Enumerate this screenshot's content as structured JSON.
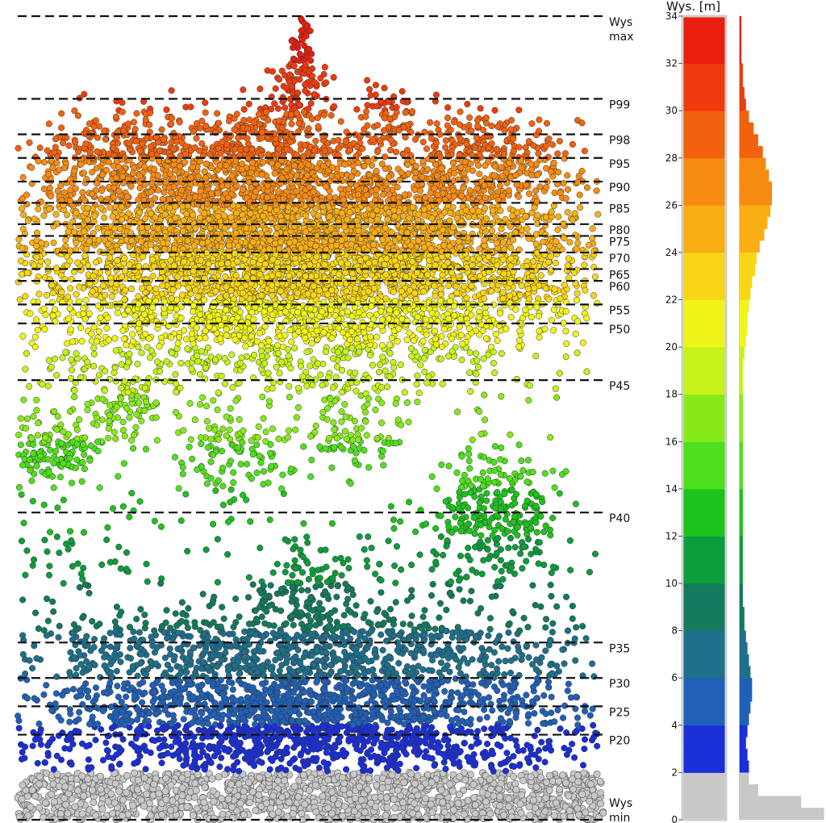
{
  "chart_data": {
    "type": "scatter",
    "title": "",
    "xlabel": "",
    "ylabel": "Wys. [m]",
    "ylim": [
      0,
      34
    ],
    "yticks": [
      0,
      2,
      4,
      6,
      8,
      10,
      12,
      14,
      16,
      18,
      20,
      22,
      24,
      26,
      28,
      30,
      32,
      34
    ],
    "ground_threshold_m": 2,
    "ground_color": "#c8c8c8",
    "colormap": [
      "#1a2fd8",
      "#2060b8",
      "#1e6f8c",
      "#137a5e",
      "#0d9c3c",
      "#1ec21e",
      "#4ee01c",
      "#86ea1a",
      "#c4f21a",
      "#f0f418",
      "#f9d615",
      "#f9ae14",
      "#f78b12",
      "#f2620e",
      "#ee3a0d",
      "#e81e0e"
    ],
    "percentile_lines": [
      {
        "label": "Wys max",
        "label_line1": "Wys",
        "label_line2": "max",
        "value": 34.0
      },
      {
        "label": "P99",
        "value": 30.5
      },
      {
        "label": "P98",
        "value": 29.0
      },
      {
        "label": "P95",
        "value": 28.0
      },
      {
        "label": "P90",
        "value": 27.0
      },
      {
        "label": "P85",
        "value": 26.1
      },
      {
        "label": "P80",
        "value": 25.2
      },
      {
        "label": "P75",
        "value": 24.7
      },
      {
        "label": "P70",
        "value": 24.0
      },
      {
        "label": "P65",
        "value": 23.3
      },
      {
        "label": "P60",
        "value": 22.8
      },
      {
        "label": "P55",
        "value": 21.8
      },
      {
        "label": "P50",
        "value": 21.0
      },
      {
        "label": "P45",
        "value": 18.6
      },
      {
        "label": "P40",
        "value": 13.0
      },
      {
        "label": "P35",
        "value": 7.5
      },
      {
        "label": "P30",
        "value": 6.0
      },
      {
        "label": "P25",
        "value": 4.8
      },
      {
        "label": "P20",
        "value": 3.6
      },
      {
        "label": "Wys min",
        "label_line1": "Wys",
        "label_line2": "min",
        "value": 0.0
      }
    ],
    "height_distribution": {
      "bin_m": 0.5,
      "relative_density": [
        0.55,
        0.4,
        0.12,
        0.06,
        0.06,
        0.05,
        0.04,
        0.05,
        0.06,
        0.07,
        0.08,
        0.08,
        0.07,
        0.06,
        0.05,
        0.04,
        0.03,
        0.03,
        0.02,
        0.02,
        0.02,
        0.02,
        0.02,
        0.02,
        0.02,
        0.02,
        0.02,
        0.02,
        0.02,
        0.02,
        0.02,
        0.02,
        0.02,
        0.02,
        0.02,
        0.02,
        0.02,
        0.02,
        0.02,
        0.03,
        0.04,
        0.05,
        0.05,
        0.06,
        0.07,
        0.08,
        0.1,
        0.11,
        0.13,
        0.16,
        0.18,
        0.2,
        0.21,
        0.21,
        0.19,
        0.17,
        0.15,
        0.12,
        0.09,
        0.06,
        0.04,
        0.03,
        0.02,
        0.02,
        0.01,
        0.01,
        0.01,
        0.01
      ]
    }
  }
}
